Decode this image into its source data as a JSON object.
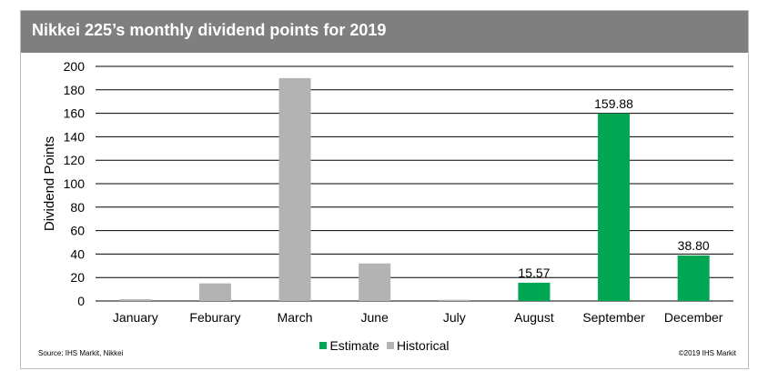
{
  "title": "Nikkei 225’s monthly dividend points for 2019",
  "source": "Source: IHS Markit, Nikkei",
  "copyright": "©2019 IHS Markit",
  "colors": {
    "estimate": "#00a651",
    "historical": "#b3b3b3",
    "header": "#7f7f7f"
  },
  "chart_data": {
    "type": "bar",
    "ylabel": "Dividend Points",
    "ylim": [
      0,
      200
    ],
    "yticks": [
      0,
      20,
      40,
      60,
      80,
      100,
      120,
      140,
      160,
      180,
      200
    ],
    "grid": true,
    "legend_position": "bottom",
    "categories": [
      "January",
      "Feburary",
      "March",
      "June",
      "July",
      "August",
      "September",
      "December"
    ],
    "values": [
      1.5,
      15,
      190,
      32,
      1,
      15.57,
      159.88,
      38.8
    ],
    "series_type": [
      "Historical",
      "Historical",
      "Historical",
      "Historical",
      "Historical",
      "Estimate",
      "Estimate",
      "Estimate"
    ],
    "data_labels": [
      "",
      "",
      "",
      "",
      "",
      "15.57",
      "159.88",
      "38.80"
    ],
    "legend": [
      {
        "name": "Estimate",
        "color": "#00a651"
      },
      {
        "name": "Historical",
        "color": "#b3b3b3"
      }
    ]
  }
}
